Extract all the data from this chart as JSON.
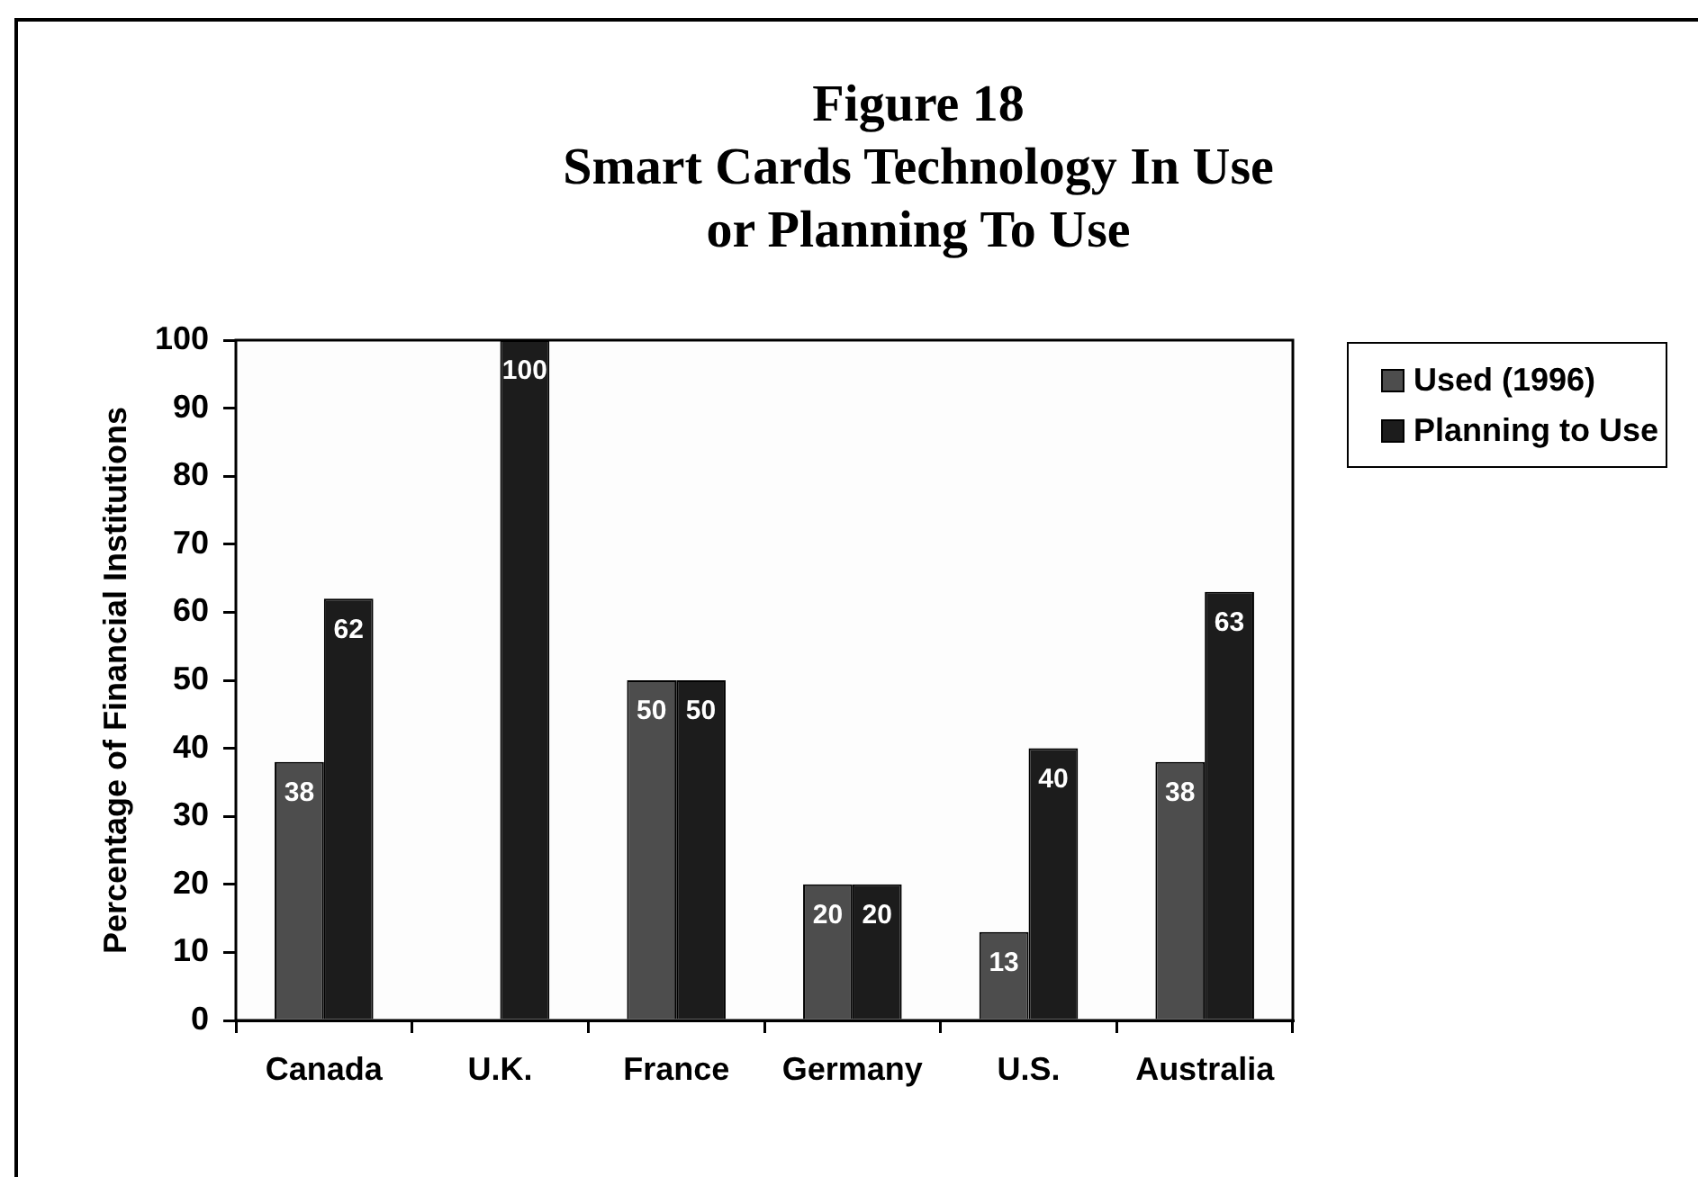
{
  "chart_data": {
    "type": "bar",
    "title": "Figure 18\nSmart Cards Technology In Use\nor Planning To Use",
    "ylabel": "Percentage of Financial Institutions",
    "categories": [
      "Canada",
      "U.K.",
      "France",
      "Germany",
      "U.S.",
      "Australia"
    ],
    "series": [
      {
        "name": "Used (1996)",
        "color": "#4d4d4d",
        "values": [
          38,
          null,
          50,
          20,
          13,
          38
        ]
      },
      {
        "name": "Planning to Use",
        "color": "#1c1c1c",
        "values": [
          62,
          100,
          50,
          20,
          40,
          63
        ]
      }
    ],
    "ylim": [
      0,
      100
    ],
    "yticks": [
      0,
      10,
      20,
      30,
      40,
      50,
      60,
      70,
      80,
      90,
      100
    ],
    "legend": "right",
    "data_labels": true
  }
}
